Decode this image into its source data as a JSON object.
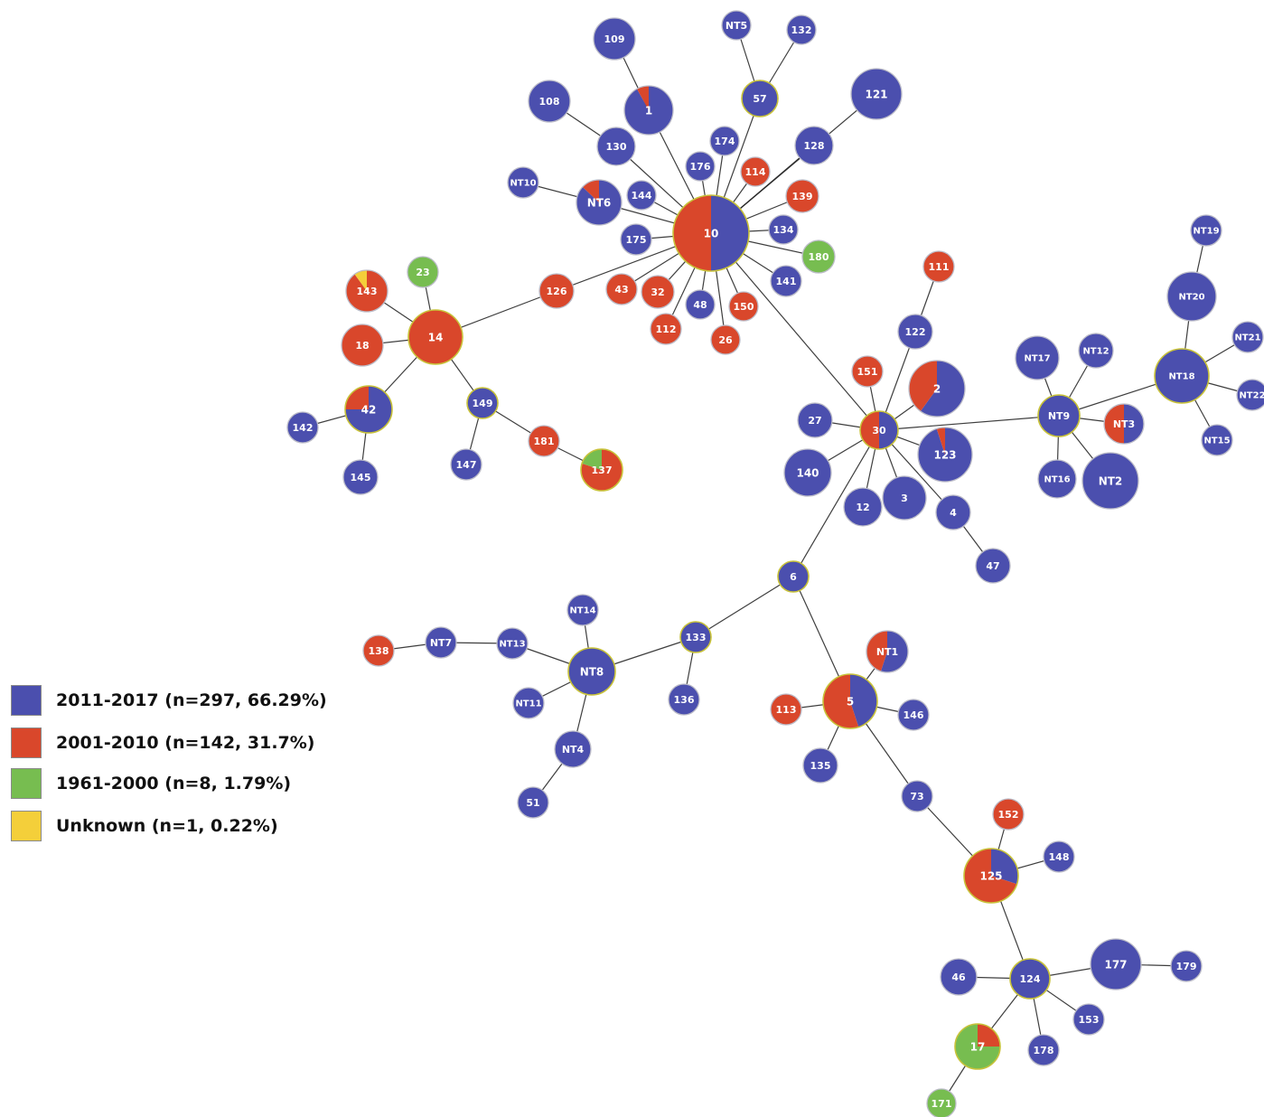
{
  "colors": {
    "2011-2017": "#4b4fae",
    "2001-2010": "#d9472b",
    "1961-2000": "#77bd50",
    "Unknown": "#f4cf3a",
    "edge": "#1c1c1c",
    "node_border": "#bcbcc8",
    "hub_border": "#c8c23a"
  },
  "legend": [
    {
      "key": "2011-2017",
      "label": "2011-2017 (n=297, 66.29%)"
    },
    {
      "key": "2001-2010",
      "label": "2001-2010 (n=142, 31.7%)"
    },
    {
      "key": "1961-2000",
      "label": "1961-2000 (n=8, 1.79%)"
    },
    {
      "key": "Unknown",
      "label": "Unknown (n=1, 0.22%)"
    }
  ],
  "nodes": [
    {
      "id": "10",
      "composition": {
        "2011-2017": 0.5,
        "2001-2010": 0.5
      }
    },
    {
      "id": "109",
      "composition": {
        "2011-2017": 1
      }
    },
    {
      "id": "1",
      "composition": {
        "2011-2017": 0.92,
        "2001-2010": 0.08
      }
    },
    {
      "id": "NT5",
      "composition": {
        "2011-2017": 1
      }
    },
    {
      "id": "132",
      "composition": {
        "2011-2017": 1
      }
    },
    {
      "id": "57",
      "composition": {
        "2011-2017": 1
      }
    },
    {
      "id": "121",
      "composition": {
        "2011-2017": 1
      }
    },
    {
      "id": "108",
      "composition": {
        "2011-2017": 1
      }
    },
    {
      "id": "130",
      "composition": {
        "2011-2017": 1
      }
    },
    {
      "id": "174",
      "composition": {
        "2011-2017": 1
      }
    },
    {
      "id": "128",
      "composition": {
        "2011-2017": 1
      }
    },
    {
      "id": "176",
      "composition": {
        "2011-2017": 1
      }
    },
    {
      "id": "114",
      "composition": {
        "2001-2010": 1
      }
    },
    {
      "id": "139",
      "composition": {
        "2001-2010": 1
      }
    },
    {
      "id": "NT10",
      "composition": {
        "2011-2017": 1
      }
    },
    {
      "id": "NT6",
      "composition": {
        "2011-2017": 0.87,
        "2001-2010": 0.13
      }
    },
    {
      "id": "144",
      "composition": {
        "2011-2017": 1
      }
    },
    {
      "id": "134",
      "composition": {
        "2011-2017": 1
      }
    },
    {
      "id": "175",
      "composition": {
        "2011-2017": 1
      }
    },
    {
      "id": "180",
      "composition": {
        "1961-2000": 1
      }
    },
    {
      "id": "141",
      "composition": {
        "2011-2017": 1
      }
    },
    {
      "id": "126",
      "composition": {
        "2001-2010": 1
      }
    },
    {
      "id": "43",
      "composition": {
        "2001-2010": 1
      }
    },
    {
      "id": "32",
      "composition": {
        "2001-2010": 1
      }
    },
    {
      "id": "48",
      "composition": {
        "2011-2017": 1
      }
    },
    {
      "id": "150",
      "composition": {
        "2001-2010": 1
      }
    },
    {
      "id": "112",
      "composition": {
        "2001-2010": 1
      }
    },
    {
      "id": "26",
      "composition": {
        "2001-2010": 1
      }
    },
    {
      "id": "143",
      "composition": {
        "2001-2010": 0.9,
        "Unknown": 0.1
      }
    },
    {
      "id": "23",
      "composition": {
        "1961-2000": 1
      }
    },
    {
      "id": "14",
      "composition": {
        "2001-2010": 1
      }
    },
    {
      "id": "18",
      "composition": {
        "2001-2010": 1
      }
    },
    {
      "id": "42",
      "composition": {
        "2011-2017": 0.75,
        "2001-2010": 0.25
      }
    },
    {
      "id": "142",
      "composition": {
        "2011-2017": 1
      }
    },
    {
      "id": "145",
      "composition": {
        "2011-2017": 1
      }
    },
    {
      "id": "149",
      "composition": {
        "2011-2017": 1
      }
    },
    {
      "id": "147",
      "composition": {
        "2011-2017": 1
      }
    },
    {
      "id": "181",
      "composition": {
        "2001-2010": 1
      }
    },
    {
      "id": "137",
      "composition": {
        "2001-2010": 0.8,
        "1961-2000": 0.2
      }
    },
    {
      "id": "111",
      "composition": {
        "2001-2010": 1
      }
    },
    {
      "id": "122",
      "composition": {
        "2011-2017": 1
      }
    },
    {
      "id": "151",
      "composition": {
        "2001-2010": 1
      }
    },
    {
      "id": "2",
      "composition": {
        "2011-2017": 0.6,
        "2001-2010": 0.4
      }
    },
    {
      "id": "27",
      "composition": {
        "2011-2017": 1
      }
    },
    {
      "id": "30",
      "composition": {
        "2011-2017": 0.5,
        "2001-2010": 0.5
      }
    },
    {
      "id": "123",
      "composition": {
        "2011-2017": 0.95,
        "2001-2010": 0.05
      }
    },
    {
      "id": "140",
      "composition": {
        "2011-2017": 1
      }
    },
    {
      "id": "12",
      "composition": {
        "2011-2017": 1
      }
    },
    {
      "id": "3",
      "composition": {
        "2011-2017": 1
      }
    },
    {
      "id": "4",
      "composition": {
        "2011-2017": 1
      }
    },
    {
      "id": "47",
      "composition": {
        "2011-2017": 1
      }
    },
    {
      "id": "NT19",
      "composition": {
        "2011-2017": 1
      }
    },
    {
      "id": "NT20",
      "composition": {
        "2011-2017": 1
      }
    },
    {
      "id": "NT17",
      "composition": {
        "2011-2017": 1
      }
    },
    {
      "id": "NT12",
      "composition": {
        "2011-2017": 1
      }
    },
    {
      "id": "NT21",
      "composition": {
        "2011-2017": 1
      }
    },
    {
      "id": "NT18",
      "composition": {
        "2011-2017": 1
      }
    },
    {
      "id": "NT22",
      "composition": {
        "2011-2017": 1
      }
    },
    {
      "id": "NT9",
      "composition": {
        "2011-2017": 1
      }
    },
    {
      "id": "NT3",
      "composition": {
        "2011-2017": 0.5,
        "2001-2010": 0.5
      }
    },
    {
      "id": "NT15",
      "composition": {
        "2011-2017": 1
      }
    },
    {
      "id": "NT16",
      "composition": {
        "2011-2017": 1
      }
    },
    {
      "id": "NT2",
      "composition": {
        "2011-2017": 1
      }
    },
    {
      "id": "6",
      "composition": {
        "2011-2017": 1
      }
    },
    {
      "id": "NT14",
      "composition": {
        "2011-2017": 1
      }
    },
    {
      "id": "133",
      "composition": {
        "2011-2017": 1
      }
    },
    {
      "id": "138",
      "composition": {
        "2001-2010": 1
      }
    },
    {
      "id": "NT7",
      "composition": {
        "2011-2017": 1
      }
    },
    {
      "id": "NT13",
      "composition": {
        "2011-2017": 1
      }
    },
    {
      "id": "NT8",
      "composition": {
        "2011-2017": 1
      }
    },
    {
      "id": "NT11",
      "composition": {
        "2011-2017": 1
      }
    },
    {
      "id": "136",
      "composition": {
        "2011-2017": 1
      }
    },
    {
      "id": "NT4",
      "composition": {
        "2011-2017": 1
      }
    },
    {
      "id": "51",
      "composition": {
        "2011-2017": 1
      }
    },
    {
      "id": "NT1",
      "composition": {
        "2011-2017": 0.55,
        "2001-2010": 0.45
      }
    },
    {
      "id": "5",
      "composition": {
        "2011-2017": 0.45,
        "2001-2010": 0.55
      }
    },
    {
      "id": "113",
      "composition": {
        "2001-2010": 1
      }
    },
    {
      "id": "146",
      "composition": {
        "2011-2017": 1
      }
    },
    {
      "id": "135",
      "composition": {
        "2011-2017": 1
      }
    },
    {
      "id": "73",
      "composition": {
        "2011-2017": 1
      }
    },
    {
      "id": "152",
      "composition": {
        "2001-2010": 1
      }
    },
    {
      "id": "148",
      "composition": {
        "2011-2017": 1
      }
    },
    {
      "id": "125",
      "composition": {
        "2011-2017": 0.3,
        "2001-2010": 0.7
      }
    },
    {
      "id": "177",
      "composition": {
        "2011-2017": 1
      }
    },
    {
      "id": "179",
      "composition": {
        "2011-2017": 1
      }
    },
    {
      "id": "46",
      "composition": {
        "2011-2017": 1
      }
    },
    {
      "id": "124",
      "composition": {
        "2011-2017": 1
      }
    },
    {
      "id": "153",
      "composition": {
        "2011-2017": 1
      }
    },
    {
      "id": "17",
      "composition": {
        "2001-2010": 0.25,
        "1961-2000": 0.75
      }
    },
    {
      "id": "178",
      "composition": {
        "2011-2017": 1
      }
    },
    {
      "id": "171",
      "composition": {
        "1961-2000": 1
      }
    }
  ],
  "edges": [
    [
      "10",
      "1"
    ],
    [
      "10",
      "57"
    ],
    [
      "10",
      "121"
    ],
    [
      "10",
      "130"
    ],
    [
      "10",
      "174"
    ],
    [
      "10",
      "128"
    ],
    [
      "10",
      "176"
    ],
    [
      "10",
      "114"
    ],
    [
      "10",
      "139"
    ],
    [
      "10",
      "NT6"
    ],
    [
      "10",
      "144"
    ],
    [
      "10",
      "134"
    ],
    [
      "10",
      "175"
    ],
    [
      "10",
      "180"
    ],
    [
      "10",
      "141"
    ],
    [
      "10",
      "126"
    ],
    [
      "10",
      "43"
    ],
    [
      "10",
      "32"
    ],
    [
      "10",
      "48"
    ],
    [
      "10",
      "150"
    ],
    [
      "10",
      "112"
    ],
    [
      "10",
      "26"
    ],
    [
      "10",
      "30"
    ],
    [
      "109",
      "1"
    ],
    [
      "NT5",
      "57"
    ],
    [
      "132",
      "57"
    ],
    [
      "108",
      "130"
    ],
    [
      "NT10",
      "NT6"
    ],
    [
      "126",
      "14"
    ],
    [
      "143",
      "14"
    ],
    [
      "23",
      "14"
    ],
    [
      "18",
      "14"
    ],
    [
      "42",
      "14"
    ],
    [
      "149",
      "14"
    ],
    [
      "42",
      "142"
    ],
    [
      "42",
      "145"
    ],
    [
      "149",
      "147"
    ],
    [
      "149",
      "181"
    ],
    [
      "181",
      "137"
    ],
    [
      "111",
      "122"
    ],
    [
      "122",
      "30"
    ],
    [
      "151",
      "30"
    ],
    [
      "2",
      "30"
    ],
    [
      "27",
      "30"
    ],
    [
      "123",
      "30"
    ],
    [
      "140",
      "30"
    ],
    [
      "12",
      "30"
    ],
    [
      "3",
      "30"
    ],
    [
      "4",
      "30"
    ],
    [
      "4",
      "47"
    ],
    [
      "30",
      "NT9"
    ],
    [
      "30",
      "6"
    ],
    [
      "NT9",
      "NT17"
    ],
    [
      "NT9",
      "NT12"
    ],
    [
      "NT9",
      "NT3"
    ],
    [
      "NT9",
      "NT16"
    ],
    [
      "NT9",
      "NT2"
    ],
    [
      "NT9",
      "NT18"
    ],
    [
      "NT18",
      "NT20"
    ],
    [
      "NT20",
      "NT19"
    ],
    [
      "NT18",
      "NT21"
    ],
    [
      "NT18",
      "NT22"
    ],
    [
      "NT18",
      "NT15"
    ],
    [
      "6",
      "133"
    ],
    [
      "133",
      "136"
    ],
    [
      "133",
      "NT8"
    ],
    [
      "NT8",
      "NT14"
    ],
    [
      "NT8",
      "NT13"
    ],
    [
      "NT13",
      "NT7"
    ],
    [
      "NT7",
      "138"
    ],
    [
      "NT8",
      "NT11"
    ],
    [
      "NT8",
      "NT4"
    ],
    [
      "NT4",
      "51"
    ],
    [
      "6",
      "5"
    ],
    [
      "5",
      "NT1"
    ],
    [
      "5",
      "113"
    ],
    [
      "5",
      "146"
    ],
    [
      "5",
      "135"
    ],
    [
      "5",
      "73"
    ],
    [
      "73",
      "125"
    ],
    [
      "125",
      "152"
    ],
    [
      "125",
      "148"
    ],
    [
      "125",
      "124"
    ],
    [
      "124",
      "46"
    ],
    [
      "124",
      "177"
    ],
    [
      "177",
      "179"
    ],
    [
      "124",
      "153"
    ],
    [
      "124",
      "178"
    ],
    [
      "124",
      "17"
    ],
    [
      "17",
      "171"
    ]
  ]
}
